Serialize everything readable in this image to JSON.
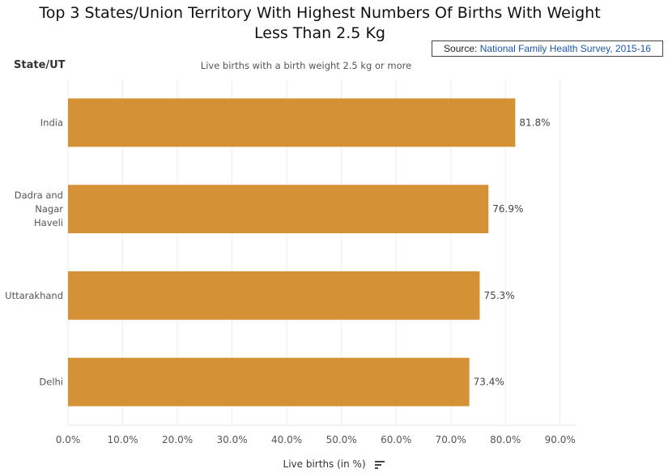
{
  "header": {
    "title_line1": "Top 3 States/Union Territory With Highest Numbers Of Births With Weight",
    "title_line2": "Less Than 2.5 Kg",
    "source_prefix": "Source: ",
    "source_link": "National Family Health Survey, 2015-16"
  },
  "icons": {
    "sort": "sort-descending-icon"
  },
  "chart_data": {
    "type": "bar",
    "orientation": "horizontal",
    "row_header": "State/UT",
    "column_header": "Live births with a birth weight 2.5 kg or more",
    "xlabel": "Live births (in %)",
    "categories": [
      [
        "India"
      ],
      [
        "Dadra and",
        "Nagar",
        "Haveli"
      ],
      [
        "Uttarakhand"
      ],
      [
        "Delhi"
      ]
    ],
    "values": [
      81.8,
      76.9,
      75.3,
      73.4
    ],
    "value_labels": [
      "81.8%",
      "76.9%",
      "75.3%",
      "73.4%"
    ],
    "xlim": [
      0,
      93
    ],
    "ticks": [
      0,
      10,
      20,
      30,
      40,
      50,
      60,
      70,
      80,
      90
    ],
    "tick_labels": [
      "0.0%",
      "10.0%",
      "20.0%",
      "30.0%",
      "40.0%",
      "50.0%",
      "60.0%",
      "70.0%",
      "80.0%",
      "90.0%"
    ],
    "bar_color": "#d49135",
    "grid": true
  }
}
